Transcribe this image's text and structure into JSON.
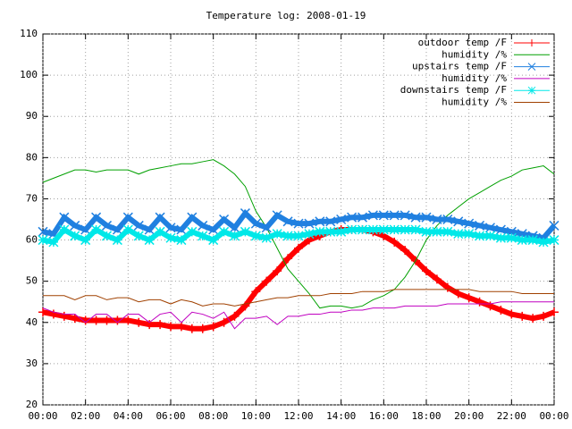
{
  "chart_data": {
    "type": "line",
    "title": "Temperature log: 2008-01-19",
    "x": [
      0,
      0.5,
      1,
      1.5,
      2,
      2.5,
      3,
      3.5,
      4,
      4.5,
      5,
      5.5,
      6,
      6.5,
      7,
      7.5,
      8,
      8.5,
      9,
      9.5,
      10,
      10.5,
      11,
      11.5,
      12,
      12.5,
      13,
      13.5,
      14,
      14.5,
      15,
      15.5,
      16,
      16.5,
      17,
      17.5,
      18,
      18.5,
      19,
      19.5,
      20,
      20.5,
      21,
      21.5,
      22,
      22.5,
      23,
      23.5,
      24
    ],
    "xlim": [
      0,
      24
    ],
    "xticks": [
      {
        "value": 0,
        "label": "00:00"
      },
      {
        "value": 2,
        "label": "02:00"
      },
      {
        "value": 4,
        "label": "04:00"
      },
      {
        "value": 6,
        "label": "06:00"
      },
      {
        "value": 8,
        "label": "08:00"
      },
      {
        "value": 10,
        "label": "10:00"
      },
      {
        "value": 12,
        "label": "12:00"
      },
      {
        "value": 14,
        "label": "14:00"
      },
      {
        "value": 16,
        "label": "16:00"
      },
      {
        "value": 18,
        "label": "18:00"
      },
      {
        "value": 20,
        "label": "20:00"
      },
      {
        "value": 22,
        "label": "22:00"
      },
      {
        "value": 24,
        "label": "00:00"
      }
    ],
    "ylim": [
      20,
      110
    ],
    "yticks": [
      20,
      30,
      40,
      50,
      60,
      70,
      80,
      90,
      100,
      110
    ],
    "grid": true,
    "legend": "upper right",
    "series": [
      {
        "name": "outdoor temp /F",
        "color": "#ff0000",
        "marker": "plus",
        "values": [
          42.5,
          42,
          41.5,
          41,
          40.5,
          40.5,
          40.5,
          40.5,
          40.5,
          40,
          39.5,
          39.5,
          39,
          39,
          38.5,
          38.5,
          39,
          40,
          41.5,
          44,
          47.5,
          50,
          52.5,
          55.5,
          58,
          60,
          61,
          62,
          62.5,
          62.5,
          62.5,
          62,
          61,
          59.5,
          57.5,
          55,
          52.5,
          50.5,
          48.5,
          47,
          46,
          45,
          44,
          43,
          42,
          41.5,
          41,
          41.5,
          42.5
        ]
      },
      {
        "name": "humidity /%",
        "color": "#00a000",
        "marker": "none",
        "values": [
          74,
          75,
          76,
          77,
          77,
          76.5,
          77,
          77,
          77,
          76,
          77,
          77.5,
          78,
          78.5,
          78.5,
          79,
          79.5,
          78,
          76,
          73,
          67,
          63,
          58,
          53,
          50,
          47,
          43.5,
          44,
          44,
          43.5,
          44,
          45.5,
          46.5,
          48,
          51,
          55,
          60,
          63.5,
          66,
          68,
          70,
          71.5,
          73,
          74.5,
          75.5,
          77,
          77.5,
          78,
          76
        ]
      },
      {
        "name": "upstairs temp /F",
        "color": "#2080e0",
        "marker": "cross",
        "values": [
          62,
          61.5,
          65.5,
          63.5,
          62.5,
          65.5,
          63.5,
          62.5,
          65.5,
          63.5,
          62.5,
          65.5,
          63,
          62.5,
          65.5,
          63.5,
          62.5,
          65,
          63,
          66.5,
          64,
          63,
          66,
          64.5,
          64,
          64,
          64.5,
          64.5,
          65,
          65.5,
          65.5,
          66,
          66,
          66,
          66,
          65.5,
          65.5,
          65,
          65,
          64.5,
          64,
          63.5,
          63,
          62.5,
          62,
          61.5,
          61,
          60.5,
          63.5
        ]
      },
      {
        "name": "humidity /%",
        "color": "#c000c0",
        "marker": "none",
        "values": [
          43.5,
          42.5,
          42,
          42,
          40,
          42,
          42,
          40,
          42,
          42,
          40,
          42,
          42.5,
          40,
          42.5,
          42,
          41,
          42.5,
          38.5,
          41,
          41,
          41.5,
          39.5,
          41.5,
          41.5,
          42,
          42,
          42.5,
          42.5,
          43,
          43,
          43.5,
          43.5,
          43.5,
          44,
          44,
          44,
          44,
          44.5,
          44.5,
          44.5,
          44.5,
          44.5,
          45,
          45,
          45,
          45,
          45,
          45
        ]
      },
      {
        "name": "downstairs temp /F",
        "color": "#00e8e8",
        "marker": "star",
        "values": [
          60,
          59.5,
          62.5,
          61,
          60,
          62.5,
          61,
          60,
          62.5,
          61,
          60,
          62,
          60.5,
          60,
          62,
          61,
          60,
          62,
          61,
          62,
          61,
          60.5,
          61.5,
          61,
          61,
          61.5,
          62,
          62,
          62,
          62.5,
          62.5,
          62.5,
          62.5,
          62.5,
          62.5,
          62.5,
          62,
          62,
          62,
          61.5,
          61.5,
          61,
          61,
          60.5,
          60.5,
          60,
          60,
          59.5,
          60
        ]
      },
      {
        "name": "humidity /%",
        "color": "#a04000",
        "marker": "none",
        "values": [
          46.5,
          46.5,
          46.5,
          45.5,
          46.5,
          46.5,
          45.5,
          46,
          46,
          45,
          45.5,
          45.5,
          44.5,
          45.5,
          45,
          44,
          44.5,
          44.5,
          44,
          44.5,
          45,
          45.5,
          46,
          46,
          46.5,
          46.5,
          46.5,
          47,
          47,
          47,
          47.5,
          47.5,
          47.5,
          48,
          48,
          48,
          48,
          48,
          48,
          48,
          48,
          47.5,
          47.5,
          47.5,
          47.5,
          47,
          47,
          47,
          47
        ]
      }
    ]
  }
}
